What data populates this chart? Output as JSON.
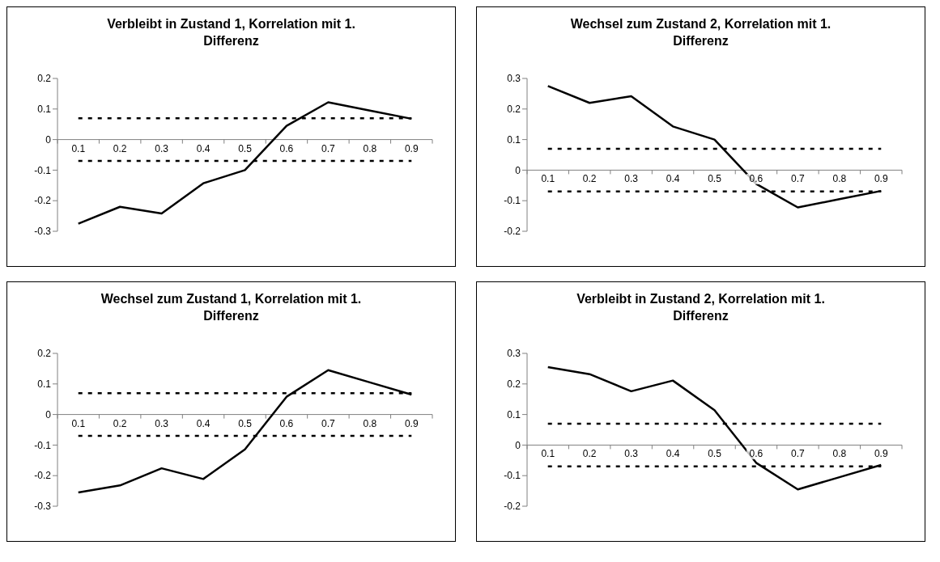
{
  "chart_data": [
    {
      "type": "line",
      "title": "Verbleibt in Zustand 1, Korrelation mit 1. Differenz",
      "categories": [
        "0.1",
        "0.2",
        "0.3",
        "0.4",
        "0.5",
        "0.6",
        "0.7",
        "0.8",
        "0.9"
      ],
      "values": [
        -0.275,
        -0.22,
        -0.242,
        -0.143,
        -0.1,
        0.045,
        0.122,
        0.095,
        0.068
      ],
      "color": "#000000",
      "ylim": [
        -0.3,
        0.2
      ],
      "yticks": [
        -0.3,
        -0.2,
        -0.1,
        0,
        0.1,
        0.2
      ],
      "ref_lines": [
        {
          "axis": "y",
          "value": 0.07,
          "color": "#000000",
          "line_style": "dashed"
        },
        {
          "axis": "y",
          "value": -0.07,
          "color": "#000000",
          "line_style": "dashed"
        }
      ]
    },
    {
      "type": "line",
      "title": "Wechsel zum Zustand 2, Korrelation mit 1. Differenz",
      "categories": [
        "0.1",
        "0.2",
        "0.3",
        "0.4",
        "0.5",
        "0.6",
        "0.7",
        "0.8",
        "0.9"
      ],
      "values": [
        0.275,
        0.22,
        0.242,
        0.143,
        0.1,
        -0.045,
        -0.122,
        -0.095,
        -0.068
      ],
      "color": "#000000",
      "ylim": [
        -0.2,
        0.3
      ],
      "yticks": [
        -0.2,
        -0.1,
        0,
        0.1,
        0.2,
        0.3
      ],
      "ref_lines": [
        {
          "axis": "y",
          "value": 0.07,
          "color": "#000000",
          "line_style": "dashed"
        },
        {
          "axis": "y",
          "value": -0.07,
          "color": "#000000",
          "line_style": "dashed"
        }
      ]
    },
    {
      "type": "line",
      "title": "Wechsel zum Zustand 1, Korrelation mit 1. Differenz",
      "categories": [
        "0.1",
        "0.2",
        "0.3",
        "0.4",
        "0.5",
        "0.6",
        "0.7",
        "0.8",
        "0.9"
      ],
      "values": [
        -0.255,
        -0.232,
        -0.176,
        -0.211,
        -0.114,
        0.058,
        0.145,
        0.105,
        0.065
      ],
      "color": "#000000",
      "ylim": [
        -0.3,
        0.2
      ],
      "yticks": [
        -0.3,
        -0.2,
        -0.1,
        0,
        0.1,
        0.2
      ],
      "ref_lines": [
        {
          "axis": "y",
          "value": 0.07,
          "color": "#000000",
          "line_style": "dashed"
        },
        {
          "axis": "y",
          "value": -0.07,
          "color": "#000000",
          "line_style": "dashed"
        }
      ]
    },
    {
      "type": "line",
      "title": "Verbleibt in Zustand 2, Korrelation mit 1. Differenz",
      "categories": [
        "0.1",
        "0.2",
        "0.3",
        "0.4",
        "0.5",
        "0.6",
        "0.7",
        "0.8",
        "0.9"
      ],
      "values": [
        0.255,
        0.232,
        0.176,
        0.211,
        0.114,
        -0.058,
        -0.145,
        -0.105,
        -0.065
      ],
      "color": "#000000",
      "ylim": [
        -0.2,
        0.3
      ],
      "yticks": [
        -0.2,
        -0.1,
        0,
        0.1,
        0.2,
        0.3
      ],
      "ref_lines": [
        {
          "axis": "y",
          "value": 0.07,
          "color": "#000000",
          "line_style": "dashed"
        },
        {
          "axis": "y",
          "value": -0.07,
          "color": "#000000",
          "line_style": "dashed"
        }
      ]
    }
  ]
}
